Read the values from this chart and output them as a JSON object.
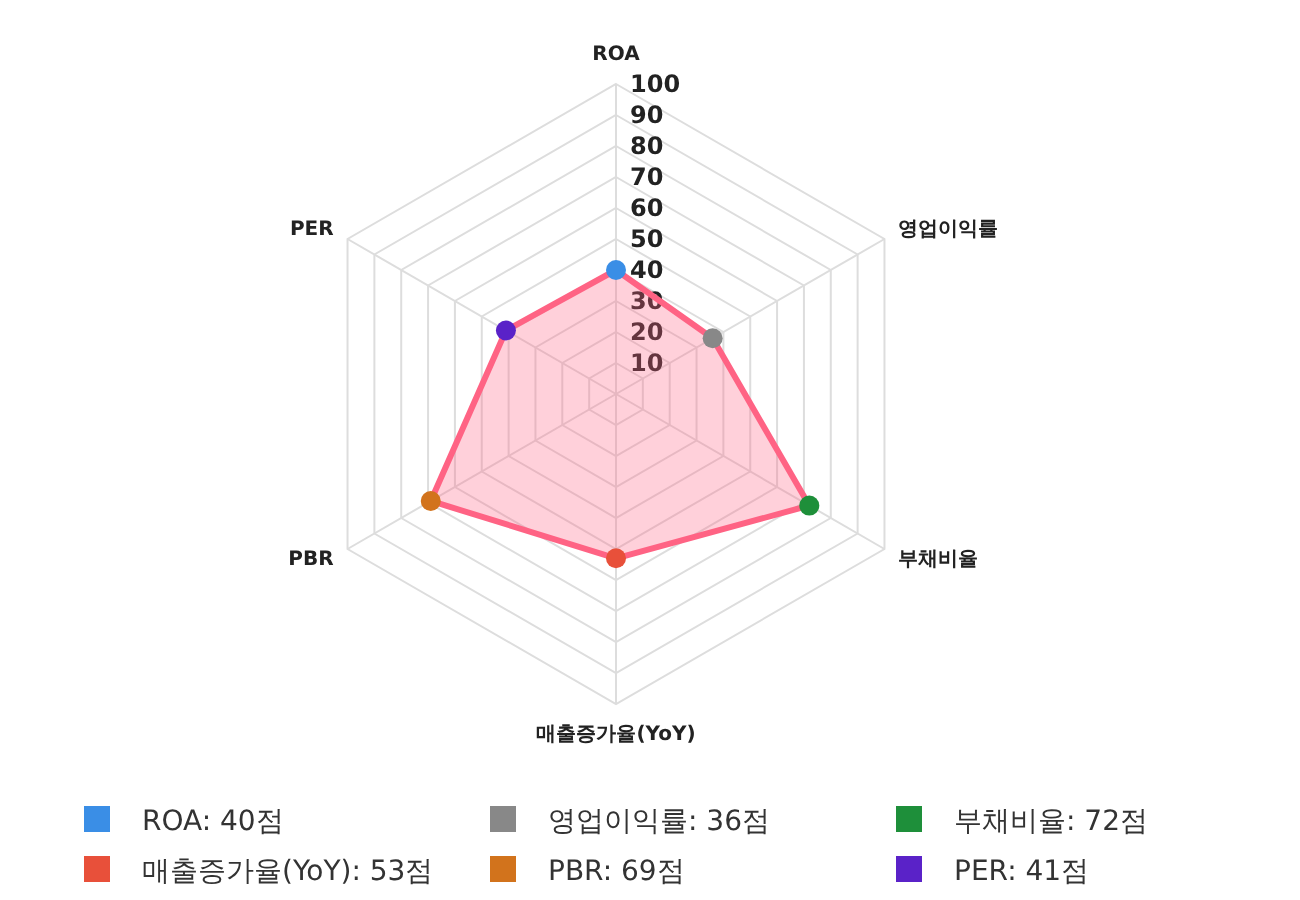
{
  "chart_data": {
    "type": "radar",
    "categories": [
      "ROA",
      "영업이익률",
      "부채비율",
      "매출증가율(YoY)",
      "PBR",
      "PER"
    ],
    "series": [
      {
        "color": "#ff6384",
        "values": [
          40,
          36,
          72,
          53,
          69,
          41
        ],
        "colors": [
          "#3a8ee6",
          "#888888",
          "#1e8f3a",
          "#e8503a",
          "#d2731c",
          "#5a22c8"
        ]
      }
    ],
    "annotations": [
      "ROA: 40점",
      "영업이익률: 36점",
      "부채비율: 72점",
      "매출증가율(YoY): 53점",
      "PBR: 69점",
      "PER: 41점"
    ],
    "ylim": [
      0,
      100
    ],
    "yticks": [
      10,
      20,
      30,
      40,
      50,
      60,
      70,
      80,
      90,
      100
    ],
    "grid": true,
    "marker": "circle"
  }
}
